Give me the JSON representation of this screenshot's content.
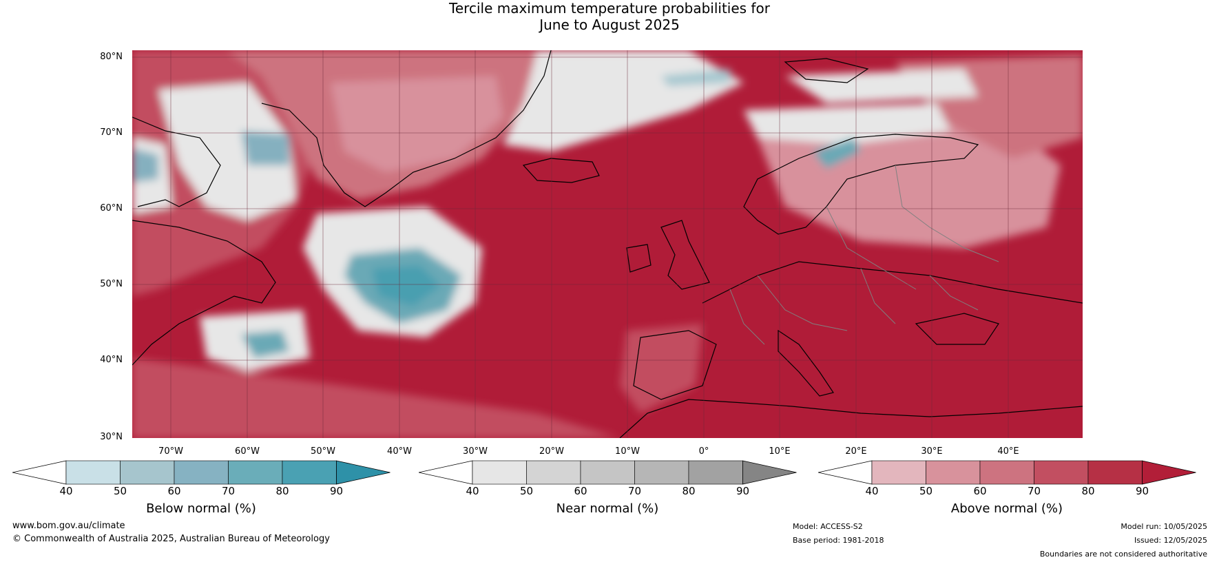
{
  "title": {
    "line1": "Tercile maximum temperature probabilities for",
    "line2": "June to August 2025"
  },
  "map": {
    "lat_labels": [
      "80°N",
      "70°N",
      "60°N",
      "50°N",
      "40°N",
      "30°N"
    ],
    "lon_labels": [
      "70°W",
      "60°W",
      "50°W",
      "40°W",
      "30°W",
      "20°W",
      "10°W",
      "0°",
      "10°E",
      "20°E",
      "30°E",
      "40°E"
    ],
    "colors": {
      "above": [
        "#e3b5bd",
        "#d8919c",
        "#cd737f",
        "#c24e60",
        "#b42d45",
        "#b01c38"
      ],
      "below": [
        "#cfe3ea",
        "#a6c8d0",
        "#85b0bf",
        "#6aa9b6",
        "#4a9fb0",
        "#2f8fa6"
      ],
      "near": [
        "#e7e7e7",
        "#d4d4d4",
        "#c5c5c5",
        "#b6b6b6",
        "#a1a1a1",
        "#848484"
      ],
      "coast": "#000000",
      "border": "#808080"
    }
  },
  "colorbars": [
    {
      "title": "Below normal (%)",
      "ticks": [
        "40",
        "50",
        "60",
        "70",
        "80",
        "90"
      ],
      "colors": [
        "#ffffff",
        "#c9e0e7",
        "#a6c5cd",
        "#86b2c2",
        "#6aadb9",
        "#4aa1b3",
        "#2e91a8"
      ]
    },
    {
      "title": "Near normal (%)",
      "ticks": [
        "40",
        "50",
        "60",
        "70",
        "80",
        "90"
      ],
      "colors": [
        "#ffffff",
        "#e6e6e6",
        "#d4d4d4",
        "#c5c5c5",
        "#b6b6b6",
        "#a2a2a2",
        "#858585"
      ]
    },
    {
      "title": "Above normal (%)",
      "ticks": [
        "40",
        "50",
        "60",
        "70",
        "80",
        "90"
      ],
      "colors": [
        "#ffffff",
        "#e3b6bd",
        "#d8929c",
        "#cd7380",
        "#c24f61",
        "#b63045",
        "#b21e38"
      ]
    }
  ],
  "footer": {
    "url": "www.bom.gov.au/climate",
    "copyright": "© Commonwealth of Australia 2025, Australian Bureau of Meteorology",
    "model": "Model: ACCESS-S2",
    "base_period": "Base period: 1981-2018",
    "model_run": "Model run: 10/05/2025",
    "issued": "Issued: 12/05/2025",
    "disclaimer": "Boundaries are not considered authoritative"
  }
}
